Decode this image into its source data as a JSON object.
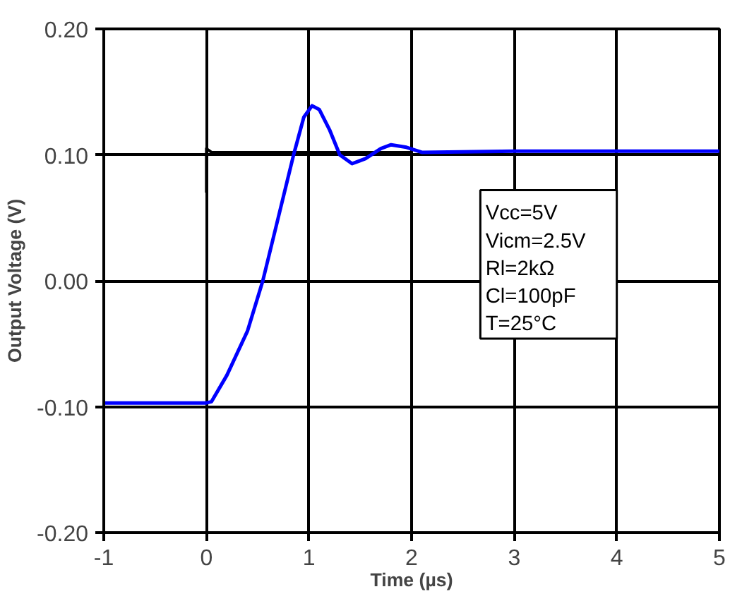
{
  "chart_data": {
    "type": "line",
    "xlabel": "Time (µs)",
    "ylabel": "Output Voltage (V)",
    "xlim": [
      -1,
      5
    ],
    "xticks": [
      -1,
      0,
      1,
      2,
      3,
      4,
      5
    ],
    "ylim": [
      -0.2,
      0.2
    ],
    "yticks": [
      {
        "value": -0.2,
        "label": "-0.20"
      },
      {
        "value": -0.1,
        "label": "-0.10"
      },
      {
        "value": 0,
        "label": "0.00"
      },
      {
        "value": 0.1,
        "label": "0.10"
      },
      {
        "value": 0.2,
        "label": "0.20"
      }
    ],
    "grid": true,
    "marker": "none",
    "line_style": "solid",
    "series": [
      {
        "color": "#000000",
        "x": [
          0,
          0,
          0.05,
          0.5,
          1,
          1.5,
          2
        ],
        "values": [
          0.07,
          0.105,
          0.102,
          0.102,
          0.102,
          0.102,
          0.102
        ]
      },
      {
        "color": "#0000ff",
        "x": [
          -1,
          0,
          0.05,
          0.2,
          0.4,
          0.55,
          0.7,
          0.85,
          0.95,
          1.03,
          1.1,
          1.2,
          1.3,
          1.42,
          1.55,
          1.7,
          1.8,
          1.95,
          2.1,
          3,
          4,
          5
        ],
        "values": [
          -0.097,
          -0.097,
          -0.096,
          -0.075,
          -0.04,
          0.0,
          0.05,
          0.1,
          0.13,
          0.139,
          0.136,
          0.12,
          0.1,
          0.093,
          0.097,
          0.105,
          0.108,
          0.106,
          0.102,
          0.103,
          0.103,
          0.103
        ]
      }
    ],
    "annotations": [
      "Vcc=5V",
      "Vicm=2.5V",
      "Rl=2kΩ",
      "Cl=100pF",
      "T=25°C"
    ]
  }
}
